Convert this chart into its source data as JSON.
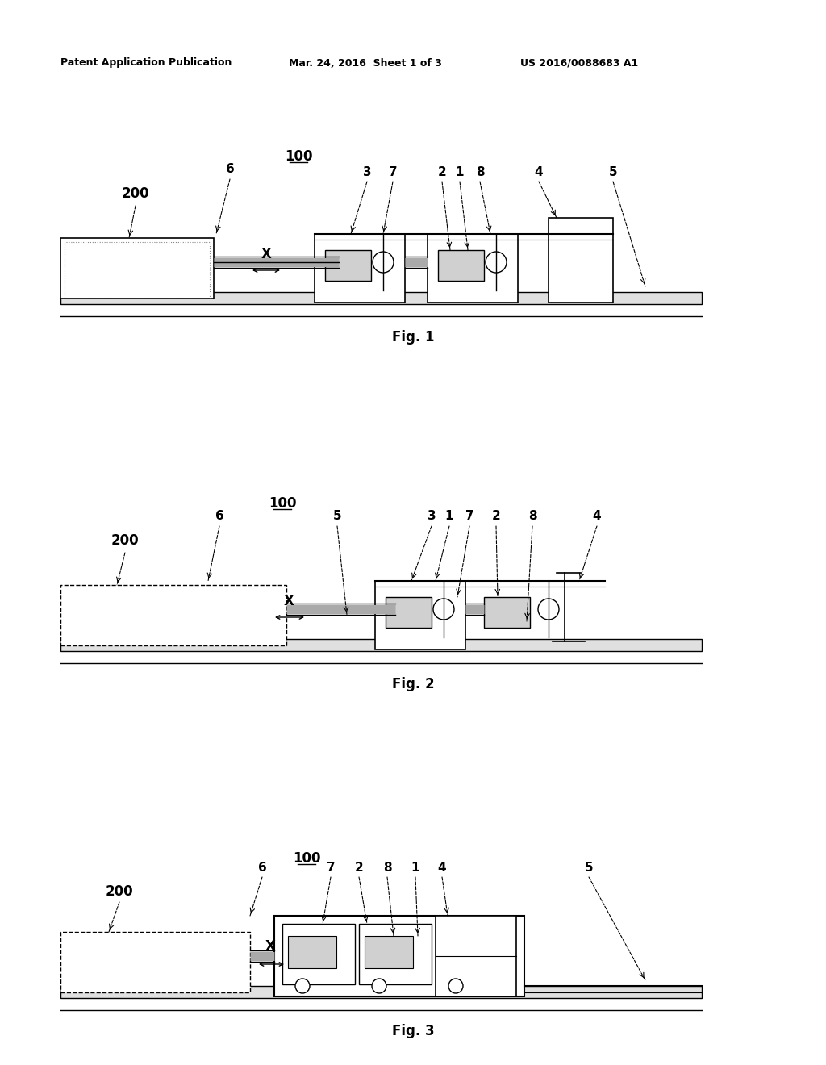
{
  "header_left": "Patent Application Publication",
  "header_mid": "Mar. 24, 2016  Sheet 1 of 3",
  "header_right": "US 2016/0088683 A1",
  "bg_color": "#ffffff",
  "line_color": "#000000",
  "fig1_caption": "Fig. 1",
  "fig2_caption": "Fig. 2",
  "fig3_caption": "Fig. 3"
}
